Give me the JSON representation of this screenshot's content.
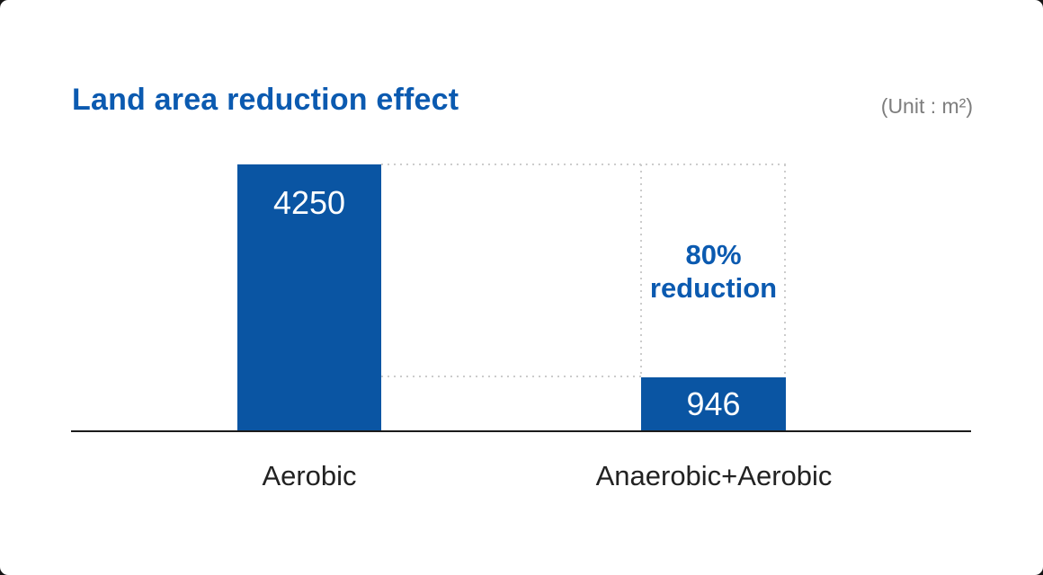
{
  "chart_data": {
    "type": "bar",
    "title": "Land area reduction effect",
    "unit_label": "(Unit : m²)",
    "categories": [
      "Aerobic",
      "Anaerobic+Aerobic"
    ],
    "values": [
      4250,
      946
    ],
    "annotation": [
      "80%",
      "reduction"
    ],
    "annotation_meaning": "80% reduction",
    "ylim": [
      0,
      4250
    ],
    "grid": false,
    "legend": false,
    "colors": {
      "bar": "#0a55a3",
      "title_text": "#0b5ab0",
      "annotation_text": "#0b5ab0",
      "value_text": "#ffffff",
      "category_text": "#222222",
      "unit_text": "#7d7d7d",
      "axis": "#1b1b1b",
      "dotted_guide": "#cccccc",
      "background": "#ffffff"
    }
  }
}
